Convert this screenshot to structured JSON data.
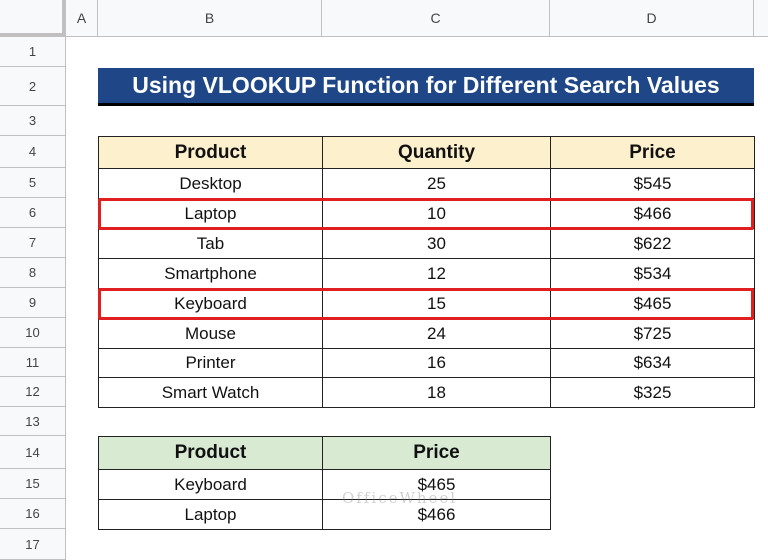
{
  "columns": [
    "A",
    "B",
    "C",
    "D"
  ],
  "rows": [
    "1",
    "2",
    "3",
    "4",
    "5",
    "6",
    "7",
    "8",
    "9",
    "10",
    "11",
    "12",
    "13",
    "14",
    "15",
    "16",
    "17"
  ],
  "title": "Using VLOOKUP Function for Different Search Values",
  "main_table": {
    "headers": [
      "Product",
      "Quantity",
      "Price"
    ],
    "rows": [
      [
        "Desktop",
        "25",
        "$545"
      ],
      [
        "Laptop",
        "10",
        "$466"
      ],
      [
        "Tab",
        "30",
        "$622"
      ],
      [
        "Smartphone",
        "12",
        "$534"
      ],
      [
        "Keyboard",
        "15",
        "$465"
      ],
      [
        "Mouse",
        "24",
        "$725"
      ],
      [
        "Printer",
        "16",
        "$634"
      ],
      [
        "Smart Watch",
        "18",
        "$325"
      ]
    ]
  },
  "highlighted_rows": [
    "Laptop",
    "Keyboard"
  ],
  "result_table": {
    "headers": [
      "Product",
      "Price"
    ],
    "rows": [
      [
        "Keyboard",
        "$465"
      ],
      [
        "Laptop",
        "$466"
      ]
    ]
  },
  "watermark": "OfficeWheel",
  "colors": {
    "title_bg": "#1f4788",
    "main_header_bg": "#fdf0cd",
    "result_header_bg": "#d9ead3",
    "highlight": "#e02020"
  }
}
